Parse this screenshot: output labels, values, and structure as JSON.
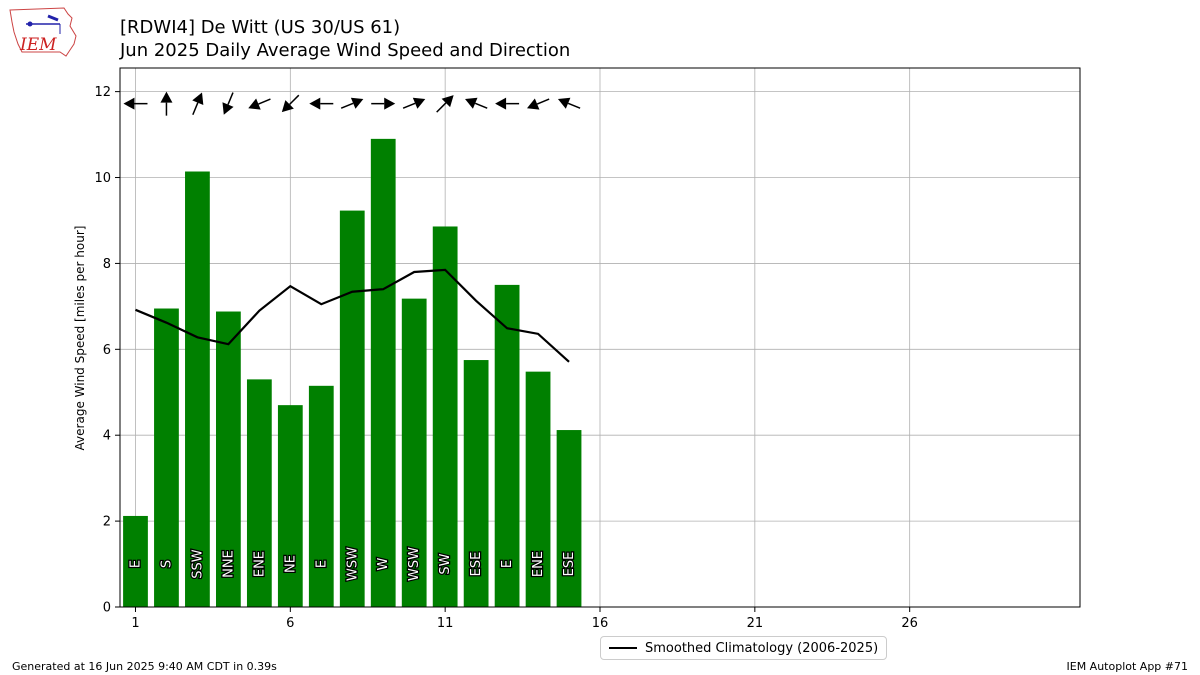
{
  "logo": {
    "text": "IEM",
    "color": "#cc2222"
  },
  "title": {
    "line1": "[RDWI4] De Witt (US 30/US 61)",
    "line2": "Jun 2025 Daily Average Wind Speed and Direction"
  },
  "footer": {
    "left": "Generated at 16 Jun 2025 9:40 AM CDT in 0.39s",
    "right": "IEM Autoplot App #71"
  },
  "legend": {
    "label": "Smoothed Climatology (2006-2025)"
  },
  "colors": {
    "bar": "#008000",
    "line": "#000000",
    "grid": "#b0b0b0",
    "arrow": "#000000"
  },
  "chart_data": {
    "type": "bar",
    "ylabel": "Average Wind Speed [miles per hour]",
    "xlabel": "",
    "xlim": [
      0.5,
      31.5
    ],
    "ylim": [
      0,
      12.55
    ],
    "xticks": [
      1,
      6,
      11,
      16,
      21,
      26
    ],
    "yticks": [
      0,
      2,
      4,
      6,
      8,
      10,
      12
    ],
    "grid": true,
    "legend_position": "bottom-center",
    "days": [
      1,
      2,
      3,
      4,
      5,
      6,
      7,
      8,
      9,
      10,
      11,
      12,
      13,
      14,
      15
    ],
    "speeds": [
      2.12,
      6.95,
      10.14,
      6.88,
      5.3,
      4.7,
      5.15,
      9.23,
      10.9,
      7.18,
      8.86,
      5.75,
      7.5,
      5.48,
      4.12
    ],
    "directions": [
      "E",
      "S",
      "SSW",
      "NNE",
      "ENE",
      "NE",
      "E",
      "WSW",
      "W",
      "WSW",
      "SW",
      "ESE",
      "E",
      "ENE",
      "ESE"
    ],
    "climatology": {
      "name": "Smoothed Climatology (2006-2025)",
      "days": [
        1,
        2,
        3,
        4,
        5,
        6,
        7,
        8,
        9,
        10,
        11,
        12,
        13,
        14,
        15
      ],
      "values": [
        6.92,
        6.62,
        6.28,
        6.12,
        6.9,
        7.47,
        7.05,
        7.34,
        7.4,
        7.8,
        7.85,
        7.13,
        6.49,
        6.36,
        5.71
      ]
    }
  }
}
